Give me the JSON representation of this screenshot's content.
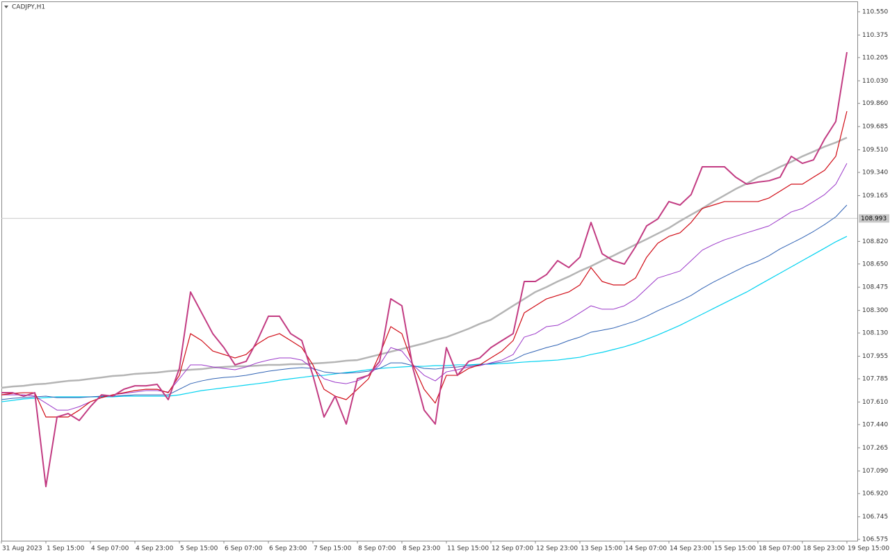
{
  "chart_data": {
    "type": "line",
    "title": "CADJPY,H1",
    "categories": [
      "31 Aug 2023",
      null,
      null,
      null,
      "1 Sep 15:00",
      null,
      null,
      null,
      "4 Sep 07:00",
      null,
      null,
      null,
      "4 Sep 23:00",
      null,
      null,
      null,
      "5 Sep 15:00",
      null,
      null,
      null,
      "6 Sep 07:00",
      null,
      null,
      null,
      "6 Sep 23:00",
      null,
      null,
      null,
      "7 Sep 15:00",
      null,
      null,
      null,
      "8 Sep 07:00",
      null,
      null,
      null,
      "8 Sep 23:00",
      null,
      null,
      null,
      "11 Sep 15:00",
      null,
      null,
      null,
      "12 Sep 07:00",
      null,
      null,
      null,
      "12 Sep 23:00",
      null,
      null,
      null,
      "13 Sep 15:00",
      null,
      null,
      null,
      "14 Sep 07:00",
      null,
      null,
      null,
      "14 Sep 23:00",
      null,
      null,
      null,
      "15 Sep 15:00",
      null,
      null,
      null,
      "18 Sep 07:00",
      null,
      null,
      null,
      "18 Sep 23:00",
      null,
      null,
      null,
      "19 Sep 15:00"
    ],
    "series": [
      {
        "color": "#b4b4b4",
        "width": 2.5,
        "values": [
          107.717,
          107.727,
          107.732,
          107.743,
          107.748,
          107.759,
          107.769,
          107.774,
          107.785,
          107.795,
          107.806,
          107.811,
          107.822,
          107.827,
          107.832,
          107.842,
          107.848,
          107.853,
          107.858,
          107.869,
          107.874,
          107.879,
          107.879,
          107.884,
          107.89,
          107.89,
          107.895,
          107.895,
          107.9,
          107.905,
          107.911,
          107.921,
          107.926,
          107.947,
          107.968,
          107.989,
          108.01,
          108.031,
          108.052,
          108.078,
          108.099,
          108.13,
          108.162,
          108.199,
          108.23,
          108.282,
          108.335,
          108.387,
          108.439,
          108.476,
          108.518,
          108.555,
          108.597,
          108.633,
          108.675,
          108.712,
          108.754,
          108.796,
          108.837,
          108.879,
          108.921,
          108.973,
          109.021,
          109.068,
          109.12,
          109.167,
          109.215,
          109.256,
          109.304,
          109.34,
          109.382,
          109.419,
          109.461,
          109.497,
          109.534,
          109.565,
          109.602
        ]
      },
      {
        "color": "#00d2f0",
        "width": 1.2,
        "values": [
          107.612,
          107.622,
          107.633,
          107.638,
          107.643,
          107.649,
          107.649,
          107.649,
          107.649,
          107.649,
          107.649,
          107.654,
          107.654,
          107.654,
          107.654,
          107.654,
          107.664,
          107.68,
          107.696,
          107.706,
          107.717,
          107.727,
          107.738,
          107.748,
          107.759,
          107.774,
          107.785,
          107.795,
          107.806,
          107.811,
          107.822,
          107.832,
          107.842,
          107.853,
          107.863,
          107.869,
          107.874,
          107.879,
          107.879,
          107.884,
          107.884,
          107.89,
          107.89,
          107.895,
          107.895,
          107.9,
          107.905,
          107.911,
          107.916,
          107.921,
          107.926,
          107.937,
          107.947,
          107.968,
          107.984,
          108.005,
          108.026,
          108.052,
          108.083,
          108.115,
          108.151,
          108.188,
          108.23,
          108.272,
          108.314,
          108.356,
          108.398,
          108.439,
          108.487,
          108.534,
          108.581,
          108.628,
          108.675,
          108.722,
          108.769,
          108.817,
          108.858
        ]
      },
      {
        "color": "#2f62b4",
        "width": 1,
        "values": [
          107.628,
          107.638,
          107.643,
          107.649,
          107.654,
          107.643,
          107.643,
          107.643,
          107.649,
          107.654,
          107.654,
          107.659,
          107.664,
          107.664,
          107.664,
          107.664,
          107.706,
          107.748,
          107.769,
          107.785,
          107.795,
          107.801,
          107.811,
          107.827,
          107.842,
          107.853,
          107.863,
          107.869,
          107.863,
          107.837,
          107.827,
          107.827,
          107.832,
          107.842,
          107.863,
          107.905,
          107.905,
          107.884,
          107.863,
          107.858,
          107.869,
          107.874,
          107.884,
          107.89,
          107.9,
          107.911,
          107.926,
          107.968,
          107.994,
          108.02,
          108.041,
          108.073,
          108.099,
          108.136,
          108.151,
          108.167,
          108.193,
          108.22,
          108.256,
          108.298,
          108.335,
          108.371,
          108.413,
          108.466,
          108.513,
          108.555,
          108.597,
          108.638,
          108.67,
          108.712,
          108.764,
          108.806,
          108.848,
          108.895,
          108.947,
          109.005,
          109.094
        ]
      },
      {
        "color": "#9a36c8",
        "width": 1,
        "values": [
          107.664,
          107.664,
          107.664,
          107.654,
          107.602,
          107.549,
          107.549,
          107.575,
          107.612,
          107.643,
          107.664,
          107.675,
          107.685,
          107.696,
          107.696,
          107.685,
          107.785,
          107.89,
          107.89,
          107.874,
          107.863,
          107.853,
          107.874,
          107.905,
          107.926,
          107.942,
          107.942,
          107.926,
          107.863,
          107.785,
          107.759,
          107.748,
          107.769,
          107.811,
          107.89,
          108.02,
          107.994,
          107.89,
          107.811,
          107.769,
          107.837,
          107.853,
          107.874,
          107.884,
          107.905,
          107.926,
          107.968,
          108.099,
          108.125,
          108.178,
          108.188,
          108.23,
          108.282,
          108.335,
          108.309,
          108.309,
          108.335,
          108.387,
          108.466,
          108.544,
          108.57,
          108.597,
          108.675,
          108.754,
          108.796,
          108.832,
          108.858,
          108.885,
          108.911,
          108.937,
          108.989,
          109.042,
          109.068,
          109.12,
          109.173,
          109.251,
          109.408
        ]
      },
      {
        "color": "#d00a14",
        "width": 1.2,
        "values": [
          107.664,
          107.675,
          107.68,
          107.68,
          107.497,
          107.497,
          107.497,
          107.549,
          107.612,
          107.643,
          107.664,
          107.68,
          107.696,
          107.706,
          107.706,
          107.68,
          107.811,
          108.125,
          108.073,
          107.994,
          107.968,
          107.942,
          107.968,
          108.047,
          108.099,
          108.125,
          108.073,
          108.02,
          107.89,
          107.706,
          107.654,
          107.628,
          107.706,
          107.785,
          107.968,
          108.178,
          108.125,
          107.89,
          107.706,
          107.602,
          107.811,
          107.811,
          107.863,
          107.89,
          107.942,
          107.994,
          108.073,
          108.282,
          108.335,
          108.387,
          108.413,
          108.439,
          108.492,
          108.623,
          108.518,
          108.492,
          108.492,
          108.544,
          108.701,
          108.806,
          108.858,
          108.885,
          108.963,
          109.068,
          109.094,
          109.12,
          109.12,
          109.12,
          109.12,
          109.147,
          109.199,
          109.251,
          109.251,
          109.304,
          109.356,
          109.461,
          109.801
        ]
      },
      {
        "color": "#c23b82",
        "width": 2,
        "values": [
          107.68,
          107.68,
          107.654,
          107.68,
          106.973,
          107.497,
          107.523,
          107.471,
          107.575,
          107.664,
          107.654,
          107.706,
          107.732,
          107.732,
          107.743,
          107.628,
          107.863,
          108.439,
          108.282,
          108.125,
          108.02,
          107.89,
          107.916,
          108.073,
          108.256,
          108.256,
          108.125,
          108.073,
          107.811,
          107.497,
          107.654,
          107.444,
          107.785,
          107.811,
          107.916,
          108.387,
          108.335,
          107.863,
          107.549,
          107.444,
          108.02,
          107.811,
          107.916,
          107.942,
          108.02,
          108.073,
          108.125,
          108.518,
          108.518,
          108.57,
          108.675,
          108.623,
          108.701,
          108.963,
          108.727,
          108.675,
          108.649,
          108.78,
          108.937,
          108.989,
          109.12,
          109.094,
          109.173,
          109.382,
          109.382,
          109.382,
          109.304,
          109.251,
          109.267,
          109.277,
          109.304,
          109.461,
          109.408,
          109.434,
          109.592,
          109.723,
          110.246
        ]
      }
    ],
    "current_price": 108.993,
    "ylim": [
      106.565,
      110.623
    ],
    "yticks": [
      {
        "value": 110.55,
        "label": "110.550"
      },
      {
        "value": 110.375,
        "label": "110.375"
      },
      {
        "value": 110.205,
        "label": "110.205"
      },
      {
        "value": 110.03,
        "label": "110.030"
      },
      {
        "value": 109.86,
        "label": "109.860"
      },
      {
        "value": 109.685,
        "label": "109.685"
      },
      {
        "value": 109.51,
        "label": "109.510"
      },
      {
        "value": 109.34,
        "label": "109.340"
      },
      {
        "value": 109.165,
        "label": "109.165"
      },
      {
        "value": 108.82,
        "label": "108.820"
      },
      {
        "value": 108.65,
        "label": "108.650"
      },
      {
        "value": 108.475,
        "label": "108.475"
      },
      {
        "value": 108.3,
        "label": "108.300"
      },
      {
        "value": 108.13,
        "label": "108.130"
      },
      {
        "value": 107.955,
        "label": "107.955"
      },
      {
        "value": 107.785,
        "label": "107.785"
      },
      {
        "value": 107.61,
        "label": "107.610"
      },
      {
        "value": 107.44,
        "label": "107.440"
      },
      {
        "value": 107.265,
        "label": "107.265"
      },
      {
        "value": 107.09,
        "label": "107.090"
      },
      {
        "value": 106.92,
        "label": "106.920"
      },
      {
        "value": 106.745,
        "label": "106.745"
      },
      {
        "value": 106.575,
        "label": "106.575"
      }
    ],
    "grid": false
  }
}
